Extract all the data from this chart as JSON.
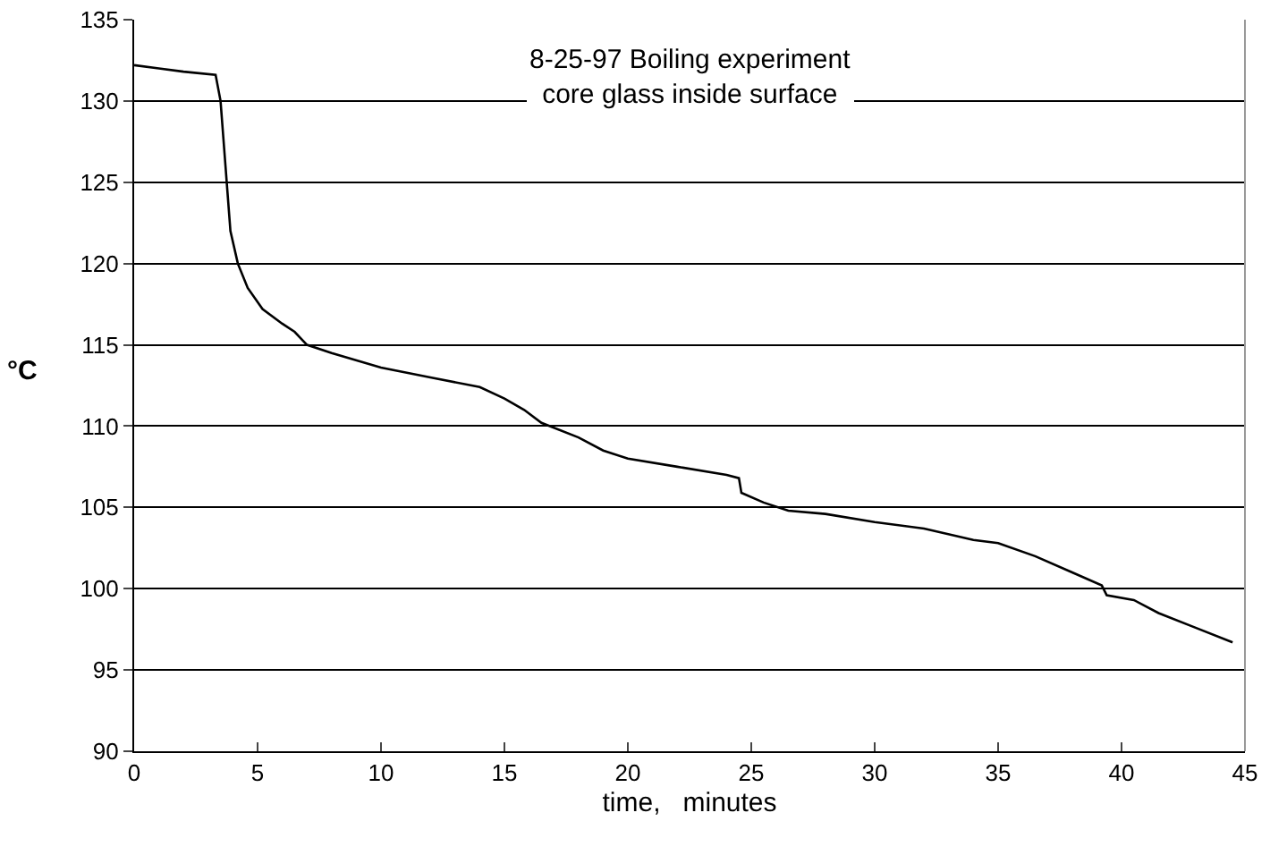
{
  "chart_data": {
    "type": "line",
    "title": "8-25-97 Boiling experiment\ncore glass inside surface",
    "xlabel": "time,   minutes",
    "ylabel": "°C",
    "x": [
      0,
      1,
      2,
      3.3,
      3.5,
      3.7,
      3.9,
      4.2,
      4.6,
      5.2,
      6,
      6.5,
      7,
      8,
      10,
      12,
      14,
      15,
      15.8,
      16.5,
      18,
      19,
      20,
      22,
      24,
      24.5,
      24.6,
      25.5,
      26.5,
      28,
      30,
      32,
      34,
      35,
      36.5,
      38,
      39.2,
      39.4,
      40.5,
      41.5,
      43,
      44.5
    ],
    "series": [
      {
        "color": "#000000",
        "values": [
          132.2,
          132,
          131.8,
          131.6,
          130,
          126,
          122,
          120,
          118.5,
          117.2,
          116.3,
          115.8,
          115,
          114.5,
          113.6,
          113,
          112.4,
          111.7,
          111,
          110.2,
          109.3,
          108.5,
          108,
          107.5,
          107,
          106.8,
          105.9,
          105.3,
          104.8,
          104.6,
          104.1,
          103.7,
          103,
          102.8,
          102,
          101,
          100.2,
          99.6,
          99.3,
          98.5,
          97.6,
          96.7
        ]
      }
    ],
    "xlim": [
      0,
      45
    ],
    "xticks": [
      0,
      5,
      10,
      15,
      20,
      25,
      30,
      35,
      40,
      45
    ],
    "ylim": [
      90,
      135
    ],
    "yticks": [
      90,
      95,
      100,
      105,
      110,
      115,
      120,
      125,
      130,
      135
    ],
    "grid": "y",
    "marker": "none",
    "line_style": "solid"
  }
}
